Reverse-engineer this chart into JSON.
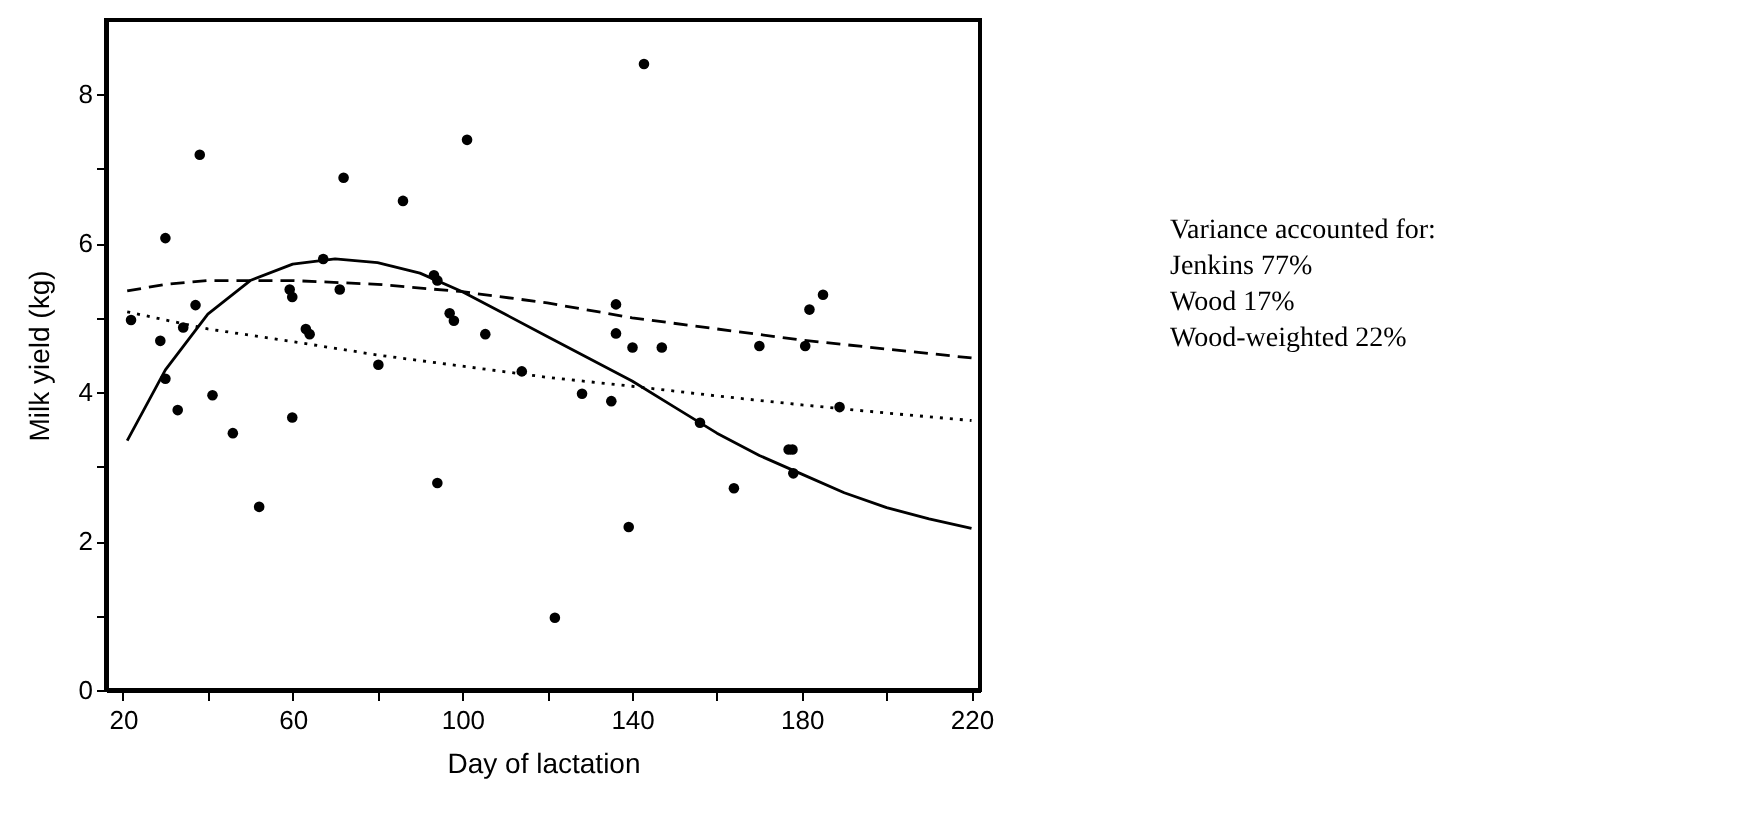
{
  "chart_data": {
    "type": "scatter",
    "xlabel": "Day of lactation",
    "ylabel": "Milk yield (kg)",
    "xlim": [
      16,
      222
    ],
    "ylim": [
      0,
      9
    ],
    "xticks": [
      20,
      {
        "value": 40,
        "label": null
      },
      60,
      {
        "value": 80,
        "label": null
      },
      100,
      {
        "value": 120,
        "label": null
      },
      140,
      {
        "value": 160,
        "label": null
      },
      180,
      {
        "value": 200,
        "label": null
      },
      220
    ],
    "yticks": [
      0,
      {
        "value": 1,
        "label": null
      },
      2,
      {
        "value": 3,
        "label": null
      },
      4,
      {
        "value": 5,
        "label": null
      },
      6,
      {
        "value": 7,
        "label": null
      },
      8
    ],
    "grid": false,
    "annotations": [
      "Variance accounted for:",
      "Jenkins 77%",
      "Wood 17%",
      "Wood-weighted 22%"
    ],
    "series": [
      {
        "color": "#000000",
        "marker": "circle",
        "x": [
          21.9,
          28.8,
          30.0,
          30.0,
          32.9,
          34.2,
          37.1,
          38.1,
          41.1,
          45.9,
          52.1,
          59.3,
          59.9,
          59.9,
          63.1,
          64.0,
          67.2,
          71.1,
          72.0,
          80.2,
          86.0,
          93.3,
          94.1,
          94.1,
          97.0,
          98.0,
          101.1,
          105.4,
          114.0,
          121.8,
          128.2,
          135.1,
          136.2,
          136.2,
          139.2,
          140.1,
          142.8,
          147.0,
          156.0,
          164.0,
          170.0,
          176.9,
          177.8,
          178.0,
          180.8,
          181.8,
          185.0,
          188.9
        ],
        "values": [
          4.97,
          4.69,
          6.07,
          4.18,
          3.76,
          4.87,
          5.17,
          7.19,
          3.96,
          3.45,
          2.46,
          5.38,
          5.28,
          3.66,
          4.85,
          4.78,
          5.79,
          5.38,
          6.88,
          4.37,
          6.57,
          5.57,
          5.5,
          2.78,
          5.06,
          4.96,
          7.39,
          4.78,
          4.28,
          0.97,
          3.98,
          3.88,
          5.18,
          4.79,
          2.19,
          4.6,
          8.41,
          4.6,
          3.59,
          2.71,
          4.62,
          3.23,
          3.23,
          2.91,
          4.62,
          5.11,
          5.31,
          3.8
        ]
      },
      {
        "type": "line",
        "color": "#000000",
        "line_style": "solid",
        "marker": "none",
        "x": [
          21,
          30,
          40,
          50,
          60,
          70,
          80,
          90,
          100,
          110,
          120,
          130,
          140,
          150,
          160,
          170,
          180,
          190,
          200,
          210,
          220
        ],
        "values": [
          3.35,
          4.3,
          5.05,
          5.5,
          5.72,
          5.79,
          5.74,
          5.6,
          5.35,
          5.05,
          4.75,
          4.45,
          4.15,
          3.8,
          3.45,
          3.15,
          2.9,
          2.65,
          2.45,
          2.3,
          2.17
        ]
      },
      {
        "type": "line",
        "color": "#000000",
        "line_style": "dashed",
        "marker": "none",
        "x": [
          21,
          30,
          40,
          60,
          80,
          100,
          120,
          140,
          160,
          180,
          200,
          220
        ],
        "values": [
          5.36,
          5.45,
          5.5,
          5.5,
          5.45,
          5.35,
          5.2,
          5.0,
          4.85,
          4.7,
          4.58,
          4.46
        ]
      },
      {
        "type": "line",
        "color": "#000000",
        "line_style": "dotted",
        "marker": "none",
        "x": [
          21,
          40,
          60,
          80,
          100,
          120,
          140,
          160,
          180,
          200,
          220
        ],
        "values": [
          5.08,
          4.85,
          4.68,
          4.5,
          4.35,
          4.2,
          4.08,
          3.95,
          3.83,
          3.72,
          3.62
        ]
      }
    ]
  }
}
